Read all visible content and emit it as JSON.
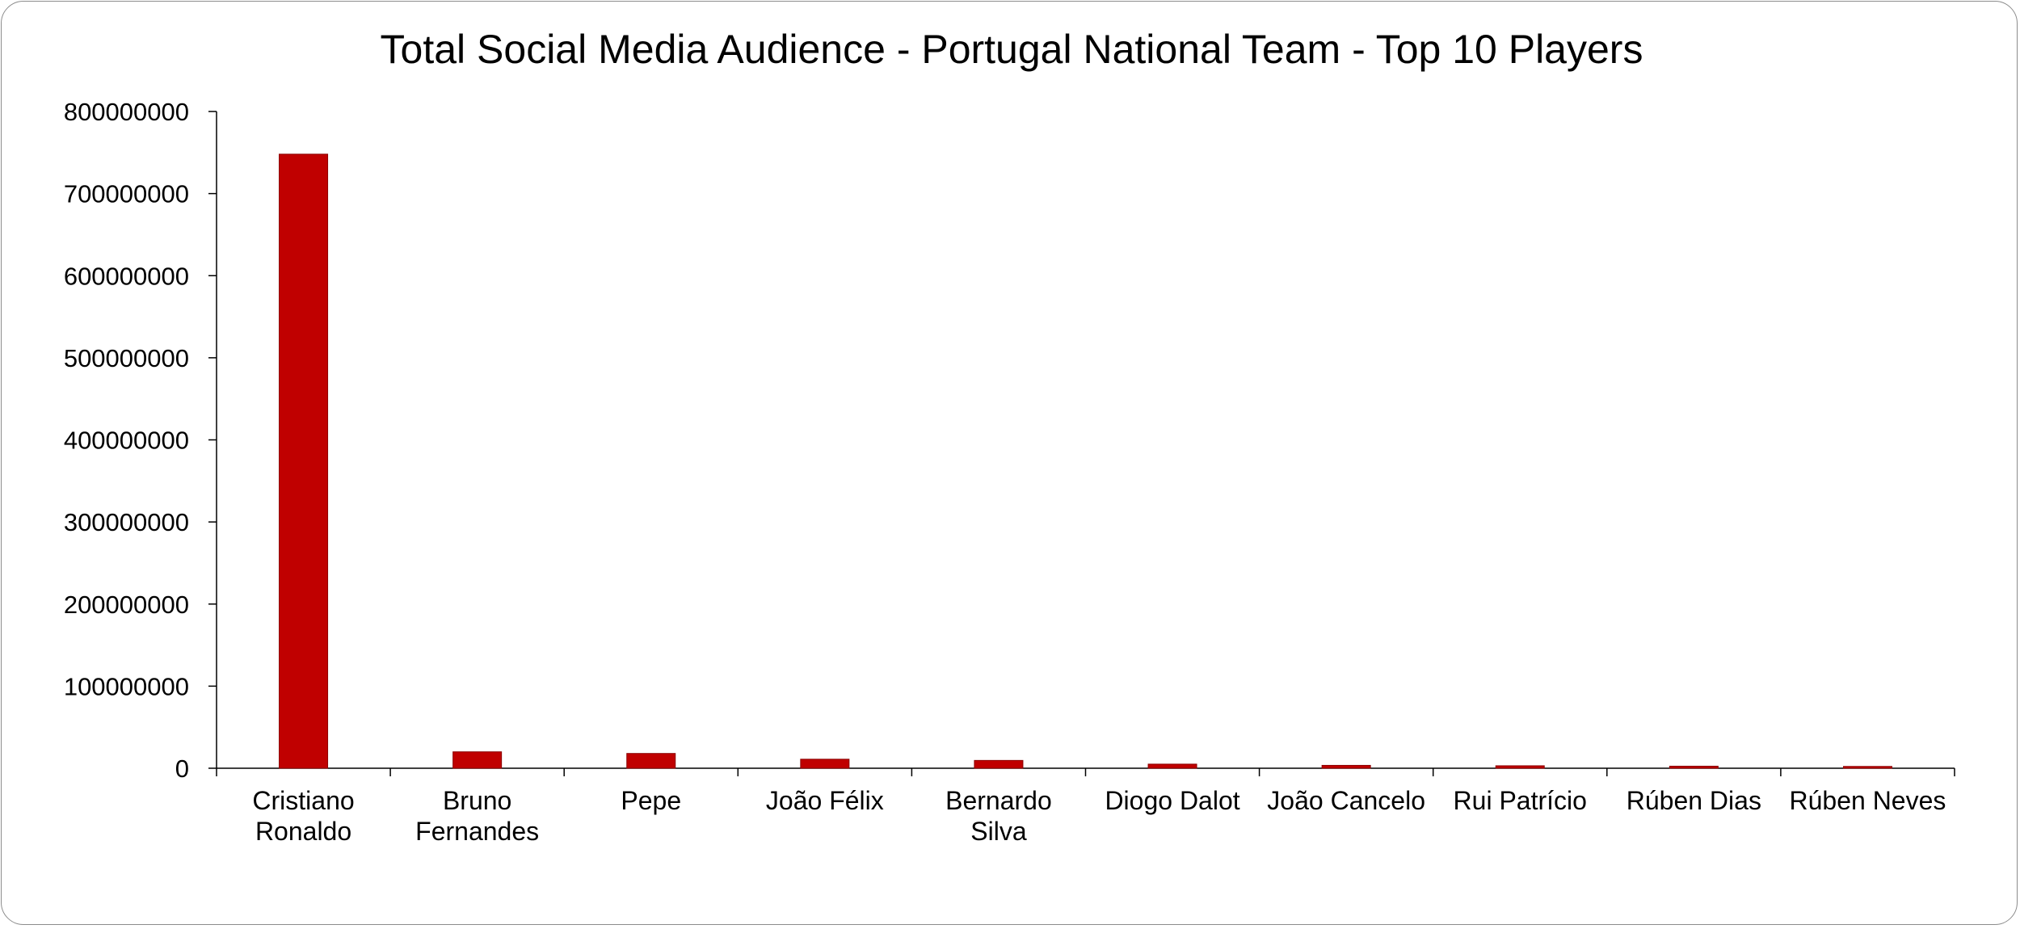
{
  "chart_data": {
    "type": "bar",
    "title": "Total Social Media Audience - Portugal National Team - Top 10 Players",
    "xlabel": "",
    "ylabel": "",
    "categories": [
      [
        "Cristiano",
        "Ronaldo"
      ],
      [
        "Bruno",
        "Fernandes"
      ],
      [
        "Pepe"
      ],
      [
        "João Félix"
      ],
      [
        "Bernardo",
        "Silva"
      ],
      [
        "Diogo Dalot"
      ],
      [
        "João Cancelo"
      ],
      [
        "Rui Patrício"
      ],
      [
        "Rúben Dias"
      ],
      [
        "Rúben Neves"
      ]
    ],
    "values": [
      748000000,
      20000000,
      18000000,
      11000000,
      9500000,
      5000000,
      3500000,
      3000000,
      2500000,
      2200000
    ],
    "ylim": [
      0,
      800000000
    ],
    "yticks": [
      "0",
      "100000000",
      "200000000",
      "300000000",
      "400000000",
      "500000000",
      "600000000",
      "700000000",
      "800000000"
    ],
    "bar_color": "#C00000",
    "bar_edge_color": "#8B0000",
    "grid": false,
    "legend": "none"
  }
}
